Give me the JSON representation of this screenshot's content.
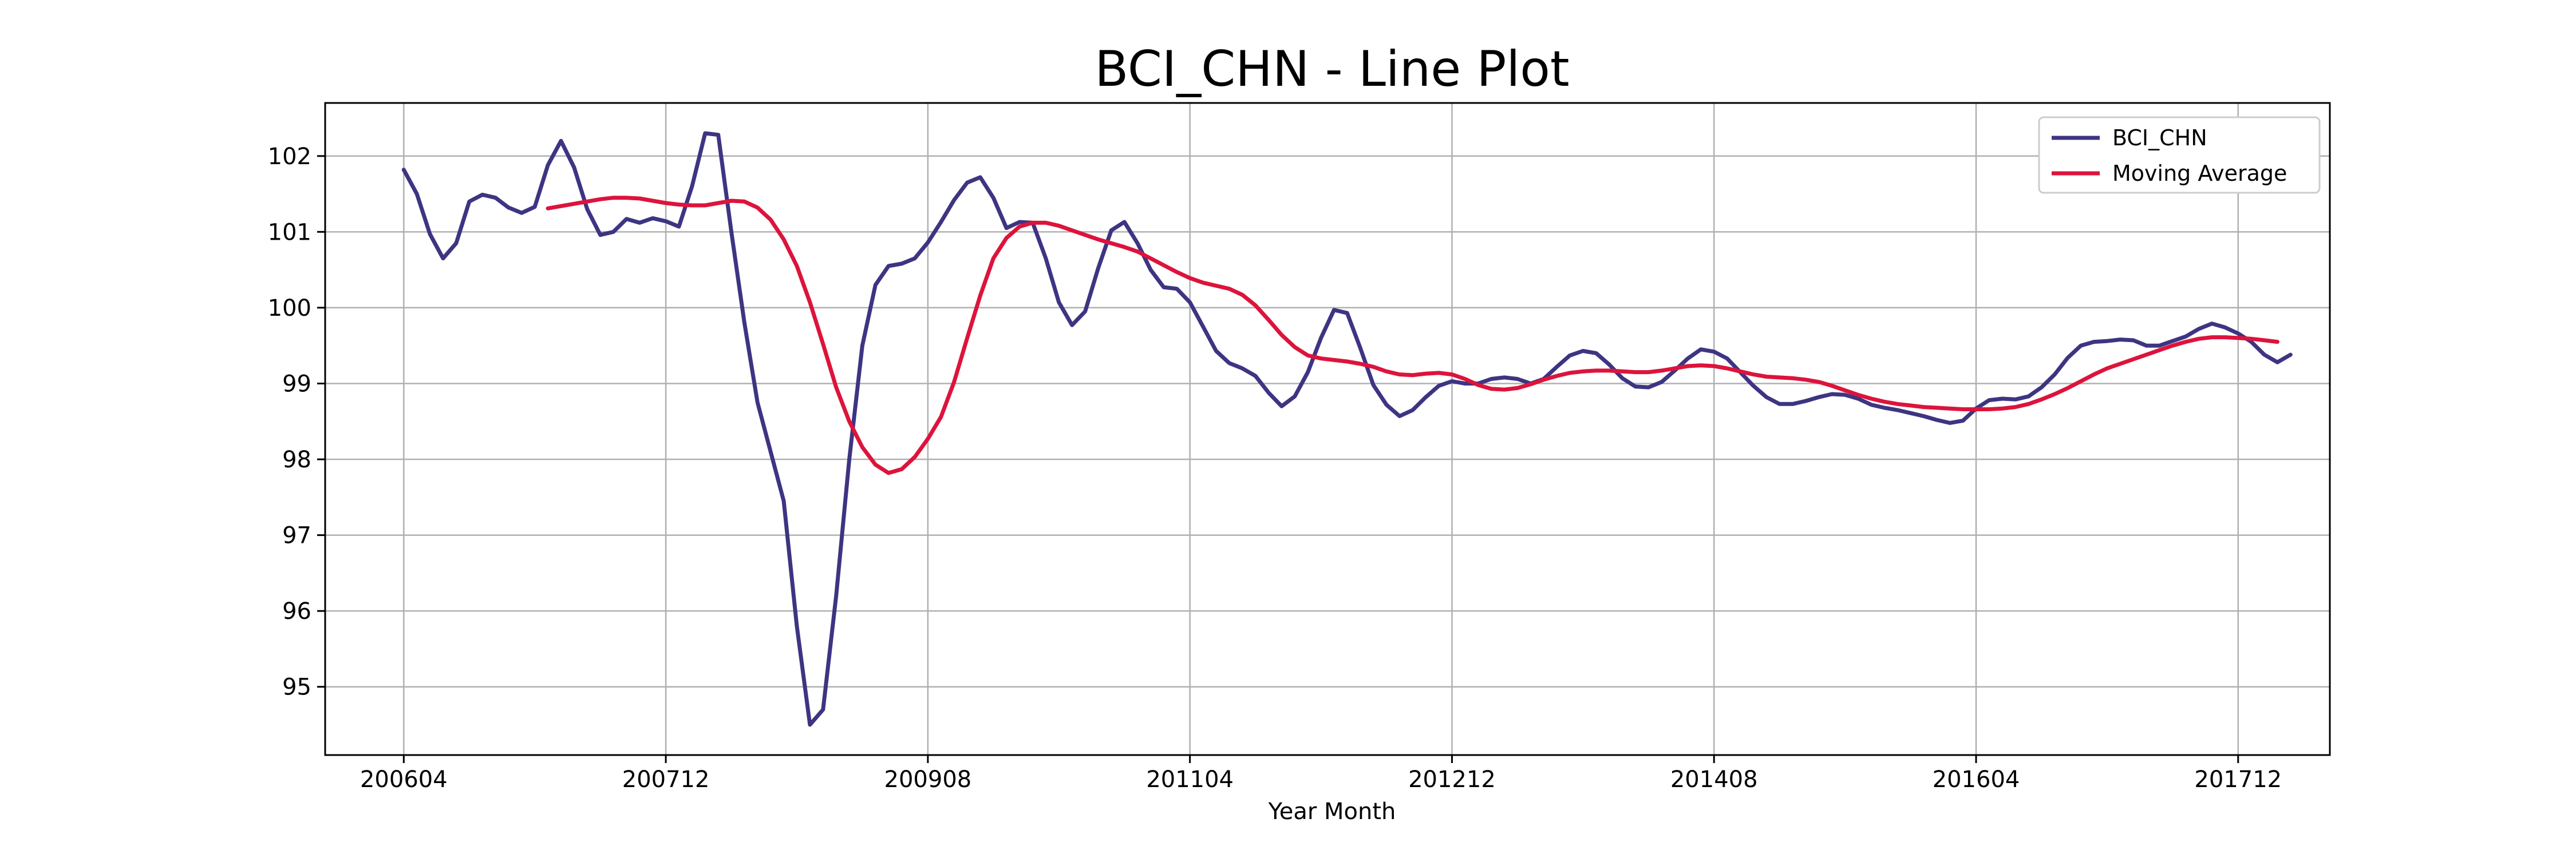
{
  "chart_data": {
    "type": "line",
    "title": "BCI_CHN - Line Plot",
    "xlabel": "Year Month",
    "ylabel": "",
    "x_start": "200604",
    "x_ticks": [
      "200604",
      "200712",
      "200908",
      "201104",
      "201212",
      "201408",
      "201604",
      "201712"
    ],
    "y_ticks": [
      95,
      96,
      97,
      98,
      99,
      100,
      101,
      102
    ],
    "xlim": [
      "200510",
      "201807"
    ],
    "ylim": [
      94.1,
      102.7
    ],
    "grid": true,
    "legend_position": "top-right",
    "series": [
      {
        "name": "BCI_CHN",
        "color": "#3d3582",
        "x_start": "200604",
        "values": [
          101.82,
          101.5,
          100.97,
          100.65,
          100.85,
          101.4,
          101.49,
          101.45,
          101.32,
          101.25,
          101.33,
          101.88,
          102.2,
          101.85,
          101.3,
          100.96,
          101.0,
          101.17,
          101.12,
          101.18,
          101.14,
          101.07,
          101.6,
          102.3,
          102.28,
          101.0,
          99.8,
          98.75,
          98.1,
          97.45,
          95.8,
          94.5,
          94.7,
          96.2,
          98.0,
          99.5,
          100.3,
          100.55,
          100.58,
          100.65,
          100.86,
          101.13,
          101.42,
          101.65,
          101.72,
          101.45,
          101.05,
          101.13,
          101.12,
          100.65,
          100.07,
          99.77,
          99.95,
          100.52,
          101.02,
          101.13,
          100.85,
          100.5,
          100.27,
          100.25,
          100.07,
          99.75,
          99.43,
          99.27,
          99.2,
          99.1,
          98.88,
          98.7,
          98.83,
          99.15,
          99.6,
          99.97,
          99.93,
          99.47,
          98.98,
          98.72,
          98.57,
          98.65,
          98.82,
          98.97,
          99.03,
          99.0,
          99.0,
          99.06,
          99.08,
          99.06,
          99.0,
          99.06,
          99.22,
          99.37,
          99.43,
          99.4,
          99.25,
          99.07,
          98.96,
          98.95,
          99.02,
          99.17,
          99.33,
          99.45,
          99.42,
          99.33,
          99.15,
          98.97,
          98.82,
          98.73,
          98.73,
          98.77,
          98.82,
          98.86,
          98.85,
          98.8,
          98.72,
          98.68,
          98.65,
          98.61,
          98.57,
          98.52,
          98.48,
          98.51,
          98.67,
          98.78,
          98.8,
          98.79,
          98.83,
          98.95,
          99.12,
          99.34,
          99.5,
          99.55,
          99.56,
          99.58,
          99.57,
          99.5,
          99.5,
          99.56,
          99.62,
          99.72,
          99.79,
          99.74,
          99.66,
          99.55,
          99.38,
          99.28,
          99.38
        ]
      },
      {
        "name": "Moving Average",
        "color": "#dc143c",
        "x_start": "200703",
        "values": [
          101.31,
          101.34,
          101.37,
          101.4,
          101.43,
          101.45,
          101.45,
          101.44,
          101.41,
          101.38,
          101.36,
          101.35,
          101.35,
          101.38,
          101.41,
          101.4,
          101.32,
          101.16,
          100.9,
          100.55,
          100.07,
          99.52,
          98.95,
          98.5,
          98.16,
          97.93,
          97.82,
          97.87,
          98.03,
          98.27,
          98.56,
          99.02,
          99.6,
          100.16,
          100.65,
          100.92,
          101.07,
          101.12,
          101.12,
          101.08,
          101.02,
          100.96,
          100.9,
          100.85,
          100.8,
          100.74,
          100.65,
          100.56,
          100.47,
          100.39,
          100.33,
          100.29,
          100.25,
          100.17,
          100.03,
          99.84,
          99.64,
          99.48,
          99.37,
          99.33,
          99.31,
          99.29,
          99.26,
          99.22,
          99.16,
          99.12,
          99.11,
          99.13,
          99.14,
          99.12,
          99.06,
          98.98,
          98.93,
          98.92,
          98.94,
          98.99,
          99.05,
          99.1,
          99.14,
          99.16,
          99.17,
          99.17,
          99.16,
          99.15,
          99.15,
          99.17,
          99.2,
          99.23,
          99.24,
          99.23,
          99.2,
          99.16,
          99.12,
          99.09,
          99.08,
          99.07,
          99.05,
          99.02,
          98.97,
          98.91,
          98.85,
          98.8,
          98.76,
          98.73,
          98.71,
          98.69,
          98.68,
          98.67,
          98.66,
          98.66,
          98.66,
          98.67,
          98.69,
          98.73,
          98.79,
          98.86,
          98.94,
          99.03,
          99.12,
          99.2,
          99.26,
          99.32,
          99.38,
          99.44,
          99.5,
          99.55,
          99.59,
          99.61,
          99.61,
          99.6,
          99.59,
          99.57,
          99.55
        ]
      }
    ]
  }
}
